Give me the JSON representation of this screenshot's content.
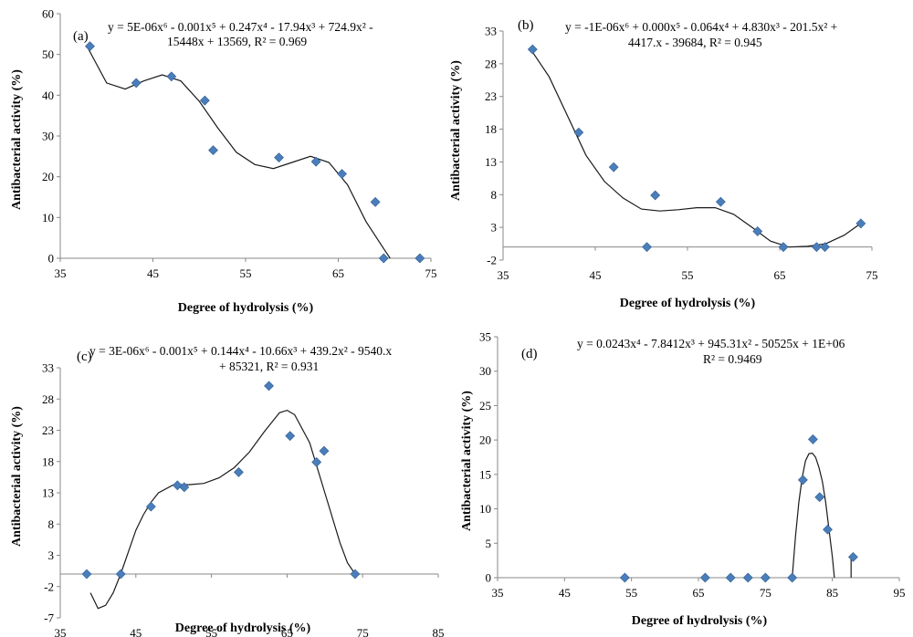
{
  "figure": {
    "panels": [
      "a",
      "b",
      "c",
      "d"
    ]
  },
  "chart_data": [
    {
      "id": "a",
      "type": "scatter",
      "panel_label": "(a)",
      "equation_line1": "y = 5E-06x⁶ - 0.001x⁵ + 0.247x⁴ - 17.94x³ + 724.9x² -",
      "equation_line2": "15448x + 13569, R² = 0.969",
      "xlabel": "Degree of hydrolysis (%)",
      "ylabel": "Antibacterial activity (%)",
      "xlim": [
        35,
        75
      ],
      "ylim": [
        0,
        60
      ],
      "xticks": [
        35,
        45,
        55,
        65,
        75
      ],
      "yticks": [
        0,
        10,
        20,
        30,
        40,
        50,
        60
      ],
      "series": [
        {
          "name": "data",
          "x": [
            38.2,
            43.2,
            47.0,
            50.6,
            51.5,
            58.6,
            62.6,
            65.4,
            69.0,
            69.9,
            73.8
          ],
          "y": [
            52,
            43,
            44.6,
            38.7,
            26.5,
            24.7,
            23.7,
            20.7,
            13.8,
            0,
            0
          ]
        }
      ],
      "fit": {
        "x": [
          38.0,
          40.0,
          42.0,
          44.0,
          46.0,
          48.0,
          50.0,
          52.0,
          54.0,
          56.0,
          58.0,
          60.0,
          62.0,
          64.0,
          66.0,
          68.0,
          70.0,
          70.6
        ],
        "y": [
          51.5,
          43,
          41.5,
          43.5,
          45,
          43.5,
          38.5,
          32,
          26,
          23,
          22,
          23.5,
          25,
          23.5,
          18,
          9,
          2,
          0
        ]
      }
    },
    {
      "id": "b",
      "type": "scatter",
      "panel_label": "(b)",
      "equation_line1": "y = -1E-06x⁶ + 0.000x⁵ - 0.064x⁴ + 4.830x³ - 201.5x² +",
      "equation_line2": "4417.x - 39684, R² = 0.945",
      "xlabel": "Degree of hydrolysis (%)",
      "ylabel": "Antibacterial activity (%)",
      "xlim": [
        35,
        75
      ],
      "ylim": [
        -2,
        33
      ],
      "xticks": [
        35,
        45,
        55,
        65,
        75
      ],
      "yticks": [
        -2,
        3,
        8,
        13,
        18,
        23,
        28,
        33
      ],
      "series": [
        {
          "name": "data",
          "x": [
            38.2,
            43.2,
            47.0,
            50.6,
            51.5,
            58.6,
            62.6,
            65.4,
            69.0,
            69.9,
            73.8
          ],
          "y": [
            30.2,
            17.5,
            12.2,
            0,
            7.9,
            6.9,
            2.4,
            0,
            0,
            0,
            3.6
          ]
        }
      ],
      "fit": {
        "x": [
          38.0,
          40.0,
          42.0,
          44.0,
          46.0,
          48.0,
          50.0,
          52.0,
          54.0,
          56.0,
          58.0,
          60.0,
          62.0,
          64.0,
          66.0,
          68.0,
          70.0,
          72.0,
          73.8
        ],
        "y": [
          30.2,
          26,
          20,
          14,
          10,
          7.5,
          5.8,
          5.5,
          5.7,
          6,
          6,
          5,
          3,
          0.9,
          0,
          0.1,
          0.5,
          1.8,
          3.6
        ]
      }
    },
    {
      "id": "c",
      "type": "scatter",
      "panel_label": "(c)",
      "equation_line1": "y = 3E-06x⁶ - 0.001x⁵ + 0.144x⁴ - 10.66x³ + 439.2x² - 9540.x",
      "equation_line2": "+ 85321, R² = 0.931",
      "xlabel": "Degree of hydrolysis (%)",
      "ylabel": "Antibacterial activity (%)",
      "xlim": [
        35,
        85
      ],
      "ylim": [
        -7,
        33
      ],
      "xticks": [
        35,
        45,
        55,
        65,
        75,
        85
      ],
      "yticks": [
        -7,
        -2,
        3,
        8,
        13,
        18,
        23,
        28,
        33
      ],
      "series": [
        {
          "name": "data",
          "x": [
            38.5,
            43.0,
            47.0,
            50.5,
            51.4,
            58.6,
            62.6,
            65.4,
            68.9,
            69.9,
            74.0
          ],
          "y": [
            0,
            0,
            10.8,
            14.2,
            13.9,
            16.3,
            30.1,
            22.1,
            17.9,
            19.7,
            0
          ]
        }
      ],
      "fit": {
        "x": [
          39.0,
          40.0,
          41.0,
          42.0,
          43.0,
          44.0,
          45.0,
          46.0,
          47.0,
          48.0,
          50.0,
          52.0,
          54.0,
          56.0,
          58.0,
          60.0,
          62.0,
          64.0,
          65.0,
          66.0,
          68.0,
          70.0,
          72.0,
          73.0,
          74.0
        ],
        "y": [
          -3,
          -5.5,
          -5,
          -3,
          0,
          3.5,
          7,
          9.5,
          11.5,
          13,
          14.3,
          14.3,
          14.5,
          15.4,
          17,
          19.5,
          22.8,
          25.8,
          26.2,
          25.5,
          21,
          13,
          5,
          1.8,
          0
        ]
      }
    },
    {
      "id": "d",
      "type": "scatter",
      "panel_label": "(d)",
      "equation_line1": "y = 0.0243x⁴ - 7.8412x³ + 945.31x² - 50525x + 1E+06",
      "equation_line2": "R² = 0.9469",
      "xlabel": "Degree of hydrolysis (%)",
      "ylabel": "Antibacterial activity (%)",
      "xlim": [
        35,
        95
      ],
      "ylim": [
        0,
        35
      ],
      "xticks": [
        35,
        45,
        55,
        65,
        75,
        85,
        95
      ],
      "yticks": [
        0,
        5,
        10,
        15,
        20,
        25,
        30,
        35
      ],
      "series": [
        {
          "name": "data",
          "x": [
            54.0,
            66.0,
            69.8,
            72.4,
            75.0,
            79.0,
            80.6,
            82.1,
            83.1,
            84.3,
            88.1
          ],
          "y": [
            0,
            0,
            0,
            0,
            0,
            0,
            14.2,
            20.1,
            11.7,
            7.0,
            3.0
          ]
        }
      ],
      "fit": {
        "x": [
          79.0,
          79.5,
          80.0,
          80.5,
          81.0,
          81.5,
          82.0,
          82.5,
          83.0,
          83.5,
          84.0,
          84.5,
          85.0,
          85.3
        ],
        "y": [
          0,
          6,
          11,
          14.6,
          17,
          18,
          18.1,
          17.5,
          16,
          14,
          11,
          7,
          3,
          0
        ],
        "tail_x": [
          87.8,
          87.8
        ],
        "tail_y": [
          0,
          3
        ]
      }
    }
  ]
}
